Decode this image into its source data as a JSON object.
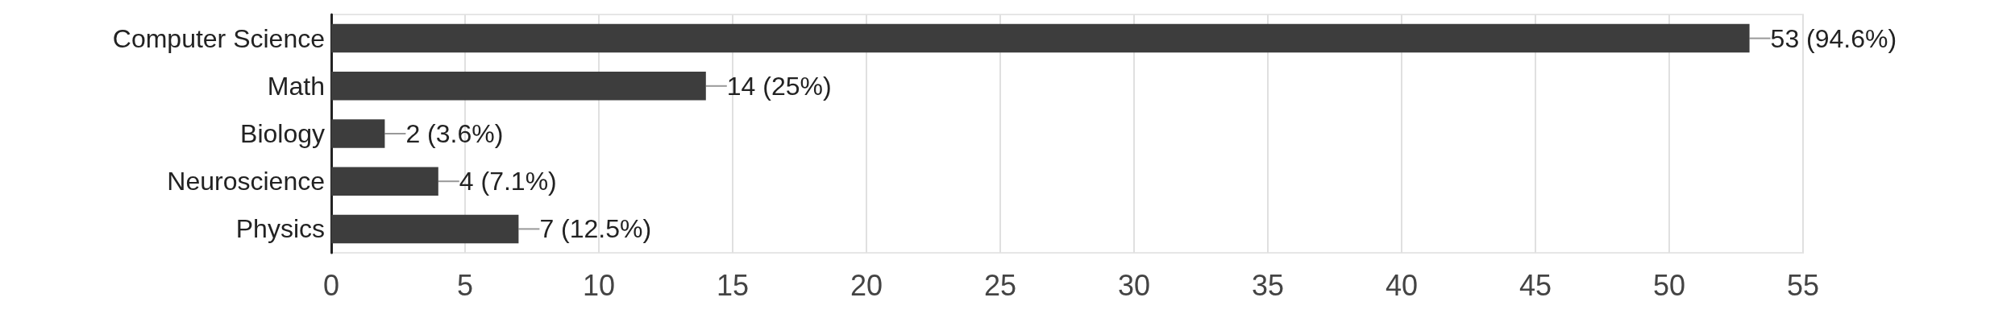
{
  "chart_data": {
    "type": "bar",
    "orientation": "horizontal",
    "categories": [
      "Computer Science",
      "Math",
      "Biology",
      "Neuroscience",
      "Physics"
    ],
    "values": [
      53,
      14,
      2,
      4,
      7
    ],
    "value_labels": [
      "53 (94.6%)",
      "14 (25%)",
      "2 (3.6%)",
      "4 (7.1%)",
      "7 (12.5%)"
    ],
    "color": "#3d3d3d",
    "xlim": [
      0,
      55
    ],
    "xticks": [
      0,
      5,
      10,
      15,
      20,
      25,
      30,
      35,
      40,
      45,
      50,
      55
    ],
    "grid": "x"
  }
}
